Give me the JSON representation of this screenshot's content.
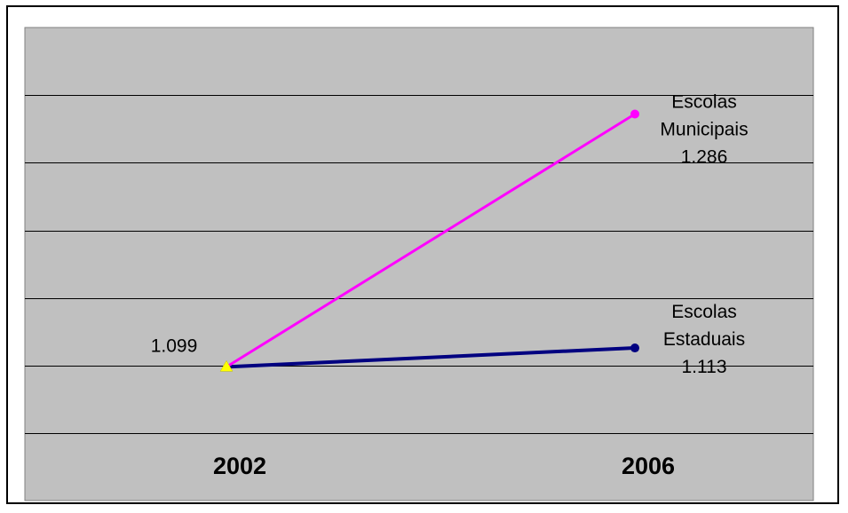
{
  "chart_data": {
    "type": "line",
    "title": "",
    "xlabel": "",
    "ylabel": "",
    "categories": [
      "2002",
      "2006"
    ],
    "series": [
      {
        "name": "Escolas Municipais",
        "values": [
          1099,
          1286
        ],
        "color": "#ff00ff",
        "marker": "circle",
        "label_lines": [
          "Escolas",
          "Municipais",
          "1.286"
        ]
      },
      {
        "name": "Escolas Estaduais",
        "values": [
          1099,
          1113
        ],
        "color": "#000080",
        "marker": "circle",
        "label_lines": [
          "Escolas",
          "Estaduais",
          "1.113"
        ]
      }
    ],
    "start_label": "1.099",
    "start_marker": {
      "shape": "triangle",
      "color": "#ffff00"
    },
    "ylim": [
      1050,
      1350
    ],
    "grid": true,
    "plot_background": "#c0c0c0",
    "legend": "none"
  }
}
